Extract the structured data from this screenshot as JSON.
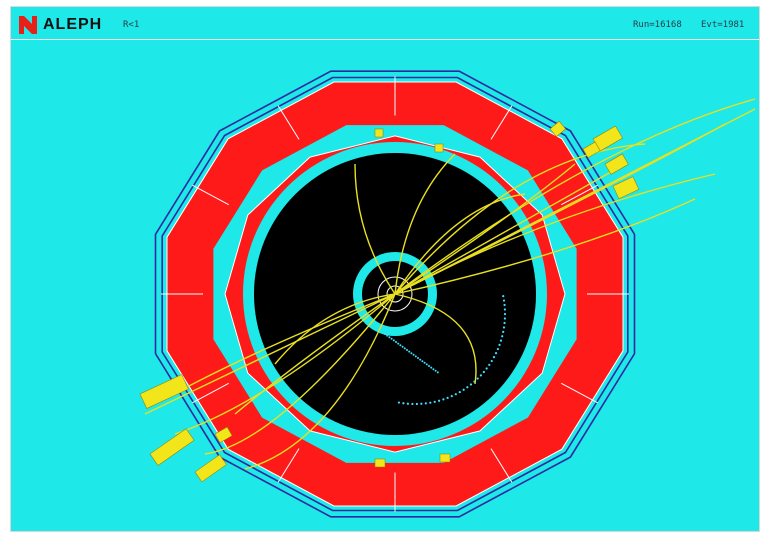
{
  "window": {
    "app_title": "ALEPH",
    "view_label": "R<1",
    "run_label": "Run=16168",
    "event_label": "Evt=1981",
    "logo_icon": "aleph-logo-icon"
  },
  "colors": {
    "background": "#1ee8e8",
    "calorimeter": "#ff1a1a",
    "tracker": "#000000",
    "tracks": "#e8e020",
    "energy_towers": "#f2e61a",
    "coil": "#2a2aa0"
  }
}
